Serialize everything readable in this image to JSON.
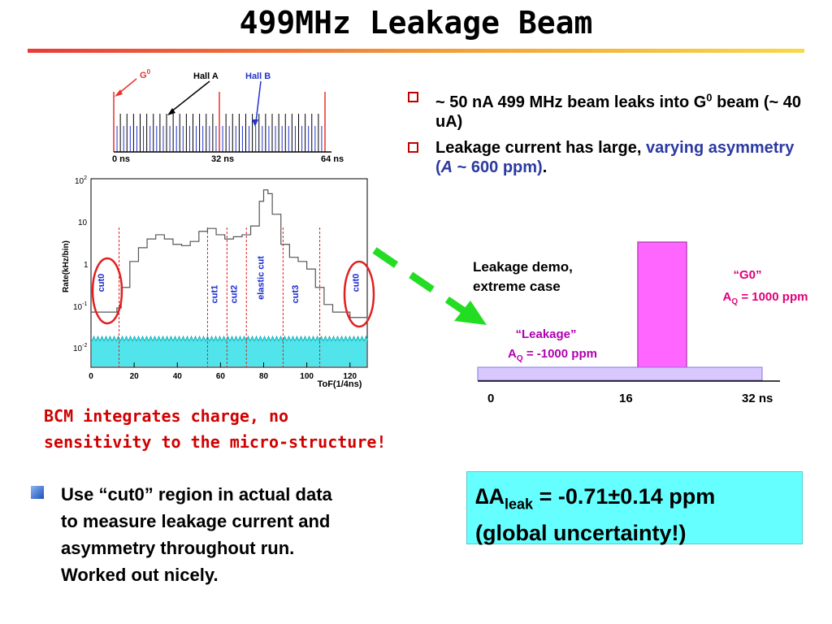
{
  "slide": {
    "title": "499MHz Leakage Beam"
  },
  "timing_diagram": {
    "labels": {
      "g0": "G",
      "g0_sup": "0",
      "hall_a": "Hall A",
      "hall_b": "Hall B"
    },
    "ticks": [
      "0 ns",
      "32 ns",
      "64 ns"
    ],
    "colors": {
      "g0": "#e8332a",
      "hall_a": "#000000",
      "hall_b": "#2233cc"
    }
  },
  "tof_histogram": {
    "ylabel": "Rate(kHz/bin)",
    "xlabel": "ToF(1/4ns)",
    "x_ticks": [
      "0",
      "20",
      "40",
      "60",
      "80",
      "100",
      "120"
    ],
    "y_ticks": [
      {
        "base": "10",
        "exp": "2"
      },
      {
        "base": "10",
        "exp": ""
      },
      {
        "base": "1",
        "exp": ""
      },
      {
        "base": "10",
        "exp": "-1"
      },
      {
        "base": "10",
        "exp": "-2"
      }
    ],
    "cut_labels": [
      "cut0",
      "cut1",
      "cut2",
      "elastic cut",
      "cut3",
      "cut0"
    ],
    "chart_data": {
      "type": "line",
      "x_range": [
        0,
        128
      ],
      "y_log_range": [
        0.01,
        100
      ],
      "y_scale": "log",
      "main_series_approx": [
        [
          0,
          0.08
        ],
        [
          6,
          0.08
        ],
        [
          12,
          0.1
        ],
        [
          14,
          0.3
        ],
        [
          18,
          1.2
        ],
        [
          22,
          2.5
        ],
        [
          26,
          4
        ],
        [
          30,
          5
        ],
        [
          34,
          4
        ],
        [
          38,
          3
        ],
        [
          42,
          2.8
        ],
        [
          46,
          3.5
        ],
        [
          50,
          6
        ],
        [
          54,
          7
        ],
        [
          58,
          5
        ],
        [
          62,
          4
        ],
        [
          66,
          4.5
        ],
        [
          70,
          5
        ],
        [
          74,
          8
        ],
        [
          78,
          30
        ],
        [
          80,
          55
        ],
        [
          82,
          45
        ],
        [
          84,
          15
        ],
        [
          88,
          3
        ],
        [
          92,
          1.5
        ],
        [
          96,
          1.2
        ],
        [
          100,
          0.8
        ],
        [
          104,
          0.3
        ],
        [
          108,
          0.12
        ],
        [
          112,
          0.08
        ],
        [
          120,
          0.06
        ],
        [
          128,
          0.05
        ]
      ],
      "leak_series_level": 0.012,
      "cut_positions": [
        13,
        54,
        63,
        72,
        89,
        106
      ]
    }
  },
  "bullets": [
    {
      "segments": [
        {
          "text": "~ 50 nA 499 MHz beam leaks into G",
          "style": "plain"
        },
        {
          "text": "0",
          "style": "sup"
        },
        {
          "text": " beam (~ 40 uA)",
          "style": "plain"
        }
      ]
    },
    {
      "segments": [
        {
          "text": "Leakage current has large, ",
          "style": "plain"
        },
        {
          "text": "varying asymmetry (",
          "style": "blue"
        },
        {
          "text": "A",
          "style": "blue-italic"
        },
        {
          "text": " ~ 600 ppm)",
          "style": "blue"
        },
        {
          "text": ".",
          "style": "plain"
        }
      ]
    }
  ],
  "leakage_demo": {
    "caption_line1": "Leakage demo,",
    "caption_line2": "extreme case",
    "g0_label": "“G0”",
    "g0_asym_prefix": "A",
    "g0_asym_sub": "Q",
    "g0_asym_value": " = 1000 ppm",
    "leak_label": "“Leakage”",
    "leak_asym_prefix": "A",
    "leak_asym_sub": "Q",
    "leak_asym_value": " = -1000 ppm",
    "axis_ticks": [
      "0",
      "16",
      "32 ns"
    ],
    "colors": {
      "g0_pulse": "#ff66ff",
      "leak_band": "#d8c8ff",
      "label": "#e0007a",
      "leak_label": "#b000b0",
      "arrow": "#22dd22"
    }
  },
  "note": {
    "line1": "BCM integrates charge, no",
    "line2": "sensitivity to the micro-structure!"
  },
  "bottom_bullet": {
    "line1": "Use “cut0” region in actual data",
    "line2": "to measure leakage current and",
    "line3": "asymmetry throughout run.",
    "line4": "Worked out nicely."
  },
  "result": {
    "delta": "∆",
    "a": "A",
    "sub": "leak",
    "value": " = -0.71±0.14 ppm",
    "line2": "(global uncertainty!)"
  }
}
